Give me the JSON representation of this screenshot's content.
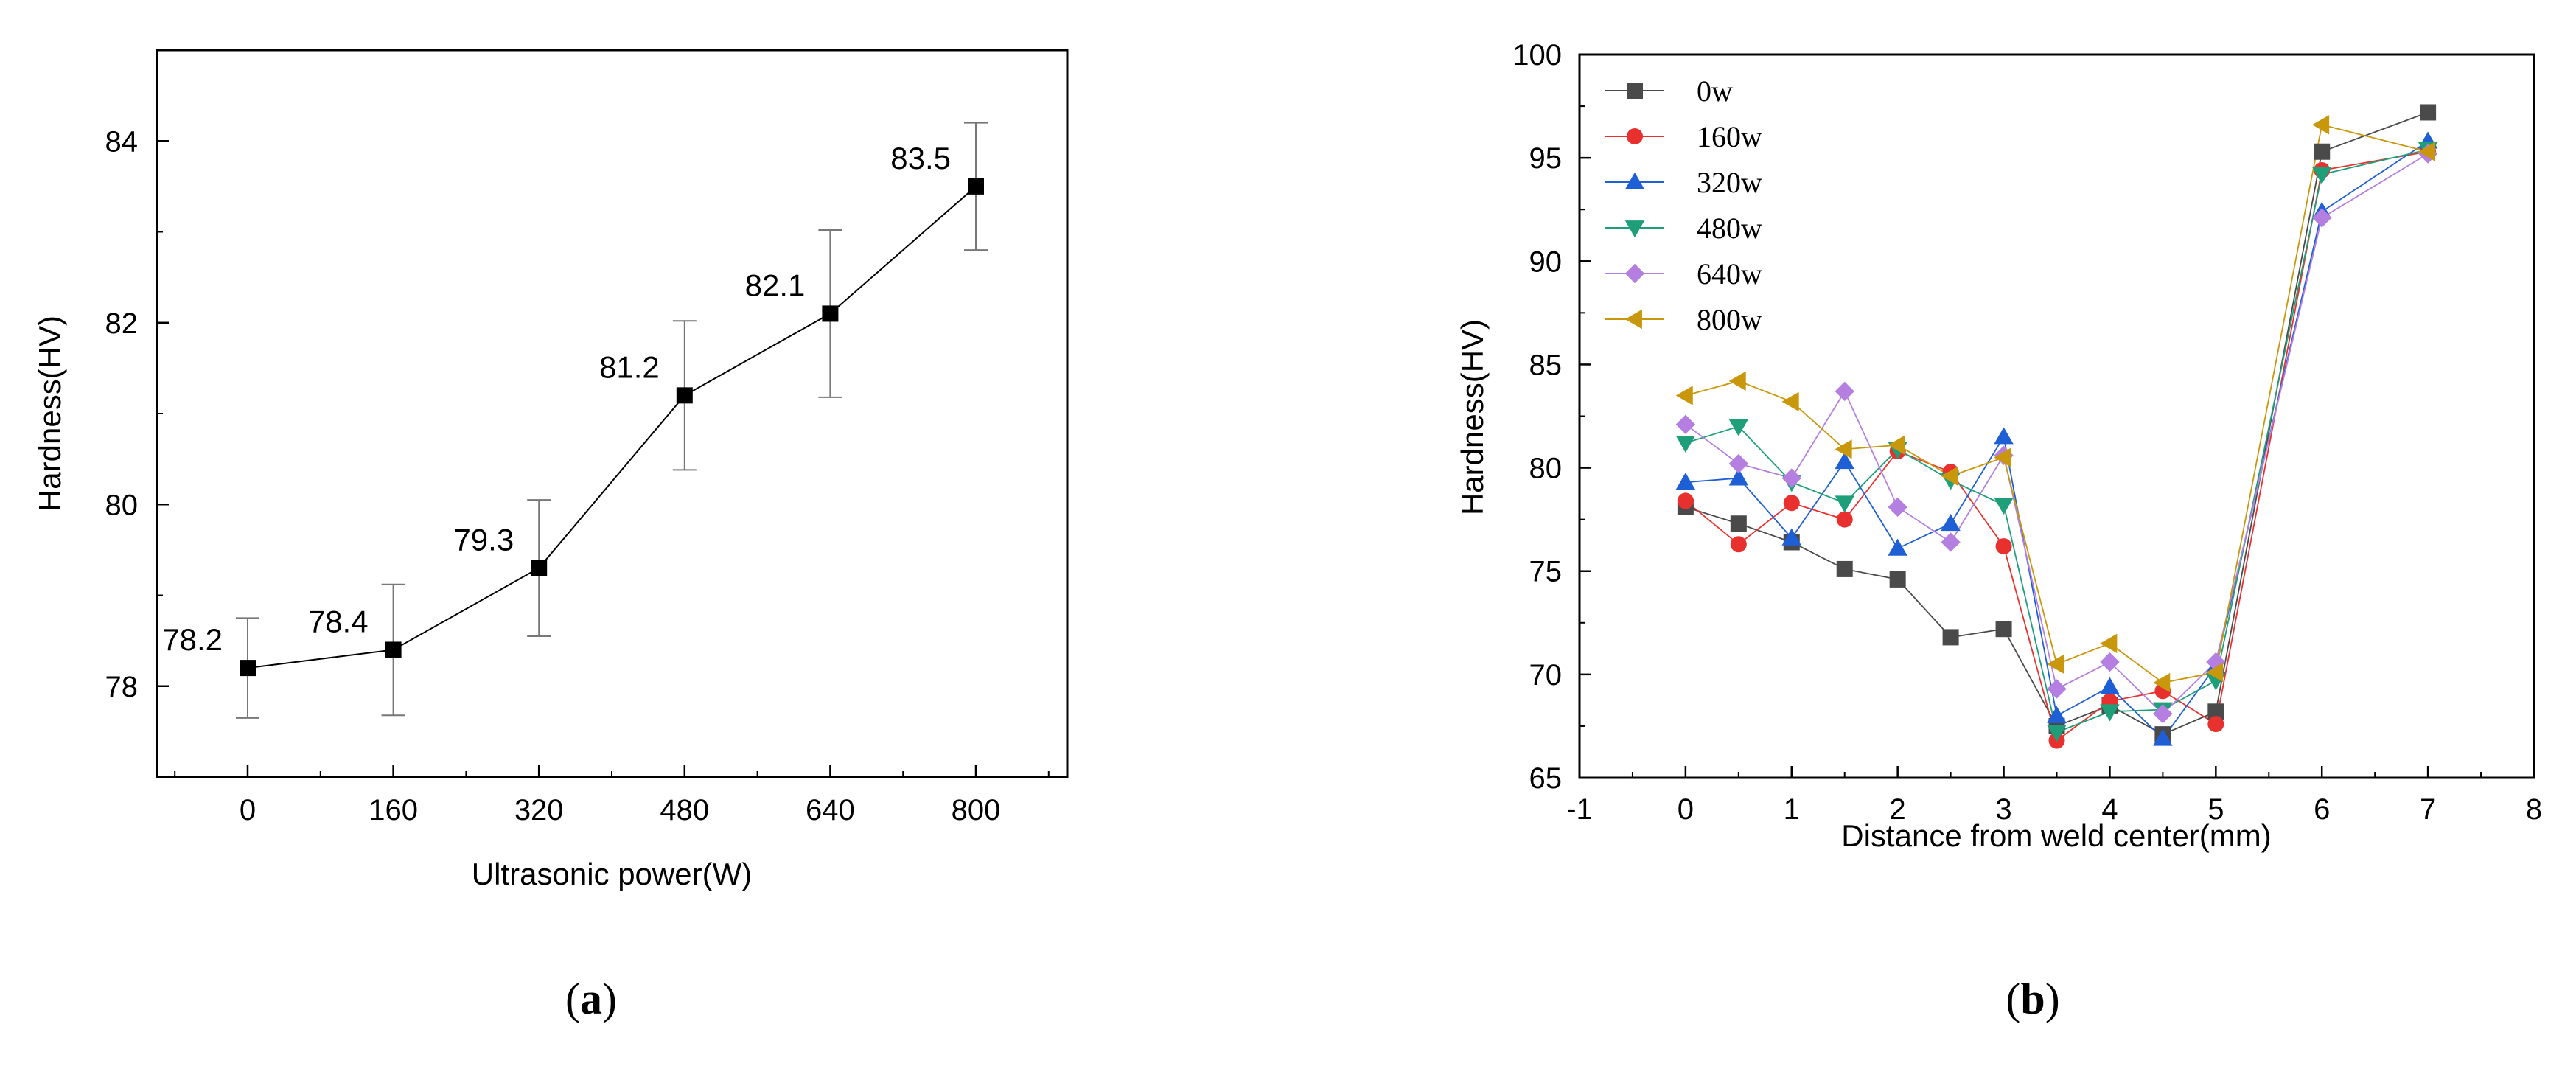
{
  "chart_data": [
    {
      "type": "line",
      "panel": "a",
      "panel_label": {
        "open": "(",
        "letter": "a",
        "close": ")"
      },
      "xlabel": "Ultrasonic power(W)",
      "ylabel": "Hardness(HV)",
      "categories": [
        "0",
        "160",
        "320",
        "480",
        "640",
        "800"
      ],
      "values": [
        78.2,
        78.4,
        79.3,
        81.2,
        82.1,
        83.5
      ],
      "errors": [
        0.55,
        0.72,
        0.75,
        0.82,
        0.92,
        0.7
      ],
      "data_labels": [
        "78.2",
        "78.4",
        "79.3",
        "81.2",
        "82.1",
        "83.5"
      ],
      "ylim": [
        77.0,
        85.0
      ],
      "yticks": [
        "78",
        "80",
        "82",
        "84"
      ],
      "marker": "square",
      "color": "#000000"
    },
    {
      "type": "line",
      "panel": "b",
      "panel_label": {
        "open": "(",
        "letter": "b",
        "close": ")"
      },
      "xlabel": "Distance from weld center(mm)",
      "ylabel": "Hardness(HV)",
      "xlim": [
        -1,
        8
      ],
      "ylim": [
        65,
        100
      ],
      "xticks": [
        "-1",
        "0",
        "1",
        "2",
        "3",
        "4",
        "5",
        "6",
        "7",
        "8"
      ],
      "yticks": [
        "65",
        "70",
        "75",
        "80",
        "85",
        "90",
        "95",
        "100"
      ],
      "x": [
        0,
        0.5,
        1,
        1.5,
        2,
        2.5,
        3,
        3.5,
        4,
        4.5,
        5,
        6,
        7
      ],
      "legend_position": "top-left",
      "series": [
        {
          "name": "0w",
          "color": "#4a4a4a",
          "marker": "square",
          "values": [
            78.1,
            77.3,
            76.4,
            75.1,
            74.6,
            71.8,
            72.2,
            67.5,
            68.5,
            67.1,
            68.2,
            95.3,
            97.2
          ]
        },
        {
          "name": "160w",
          "color": "#e8312f",
          "marker": "circle",
          "values": [
            78.4,
            76.3,
            78.3,
            77.5,
            80.8,
            79.8,
            76.2,
            66.8,
            68.7,
            69.2,
            67.6,
            94.4,
            95.3
          ]
        },
        {
          "name": "320w",
          "color": "#1f5fd6",
          "marker": "triangle-up",
          "values": [
            79.3,
            79.5,
            76.6,
            80.3,
            76.1,
            77.3,
            81.5,
            68.0,
            69.4,
            66.9,
            70.4,
            92.4,
            95.8
          ]
        },
        {
          "name": "480w",
          "color": "#1f9e7a",
          "marker": "triangle-down",
          "values": [
            81.2,
            82.0,
            79.3,
            78.3,
            80.9,
            79.4,
            78.2,
            67.2,
            68.2,
            68.3,
            69.7,
            94.2,
            95.4
          ]
        },
        {
          "name": "640w",
          "color": "#b47fe0",
          "marker": "diamond",
          "values": [
            82.1,
            80.2,
            79.5,
            83.7,
            78.1,
            76.4,
            80.6,
            69.3,
            70.6,
            68.1,
            70.6,
            92.1,
            95.2
          ]
        },
        {
          "name": "800w",
          "color": "#c9970c",
          "marker": "triangle-left",
          "values": [
            83.5,
            84.2,
            83.2,
            80.9,
            81.1,
            79.6,
            80.5,
            70.5,
            71.5,
            69.6,
            70.1,
            96.6,
            95.3
          ]
        }
      ]
    }
  ]
}
